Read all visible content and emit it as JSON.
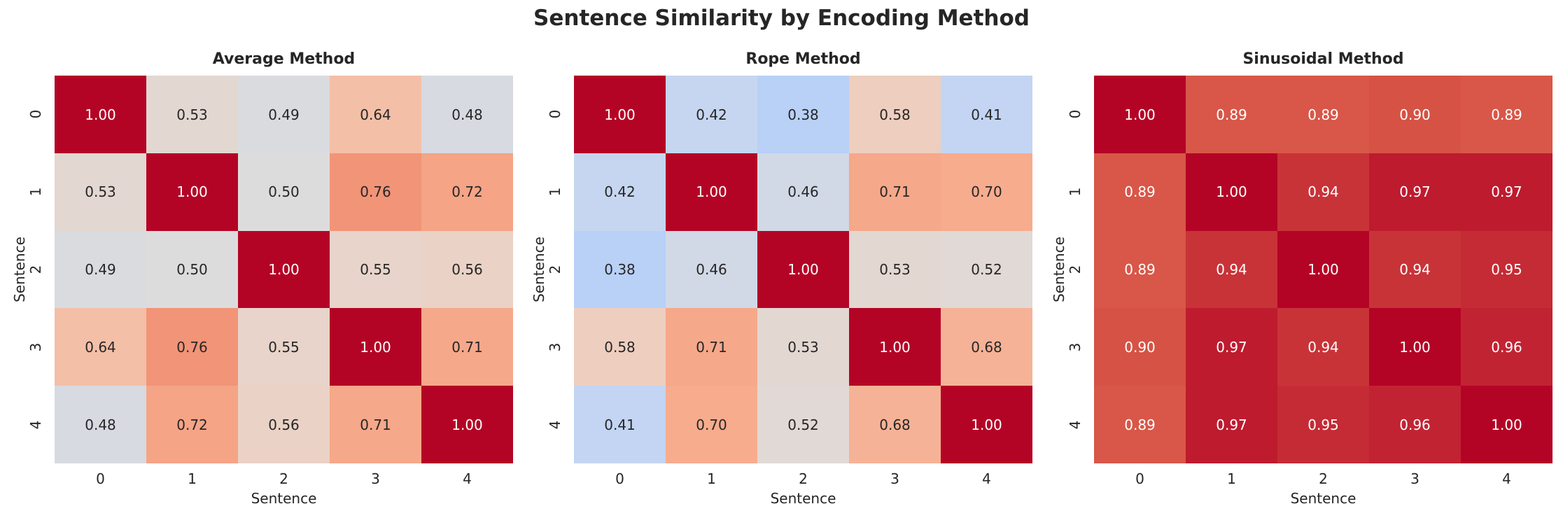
{
  "chart_data": {
    "type": "heatmap",
    "title": "Sentence Similarity by Encoding Method",
    "colormap": "coolwarm",
    "color_range": [
      0,
      1
    ],
    "annotations": true,
    "labels": [
      "0",
      "1",
      "2",
      "3",
      "4"
    ],
    "panels": [
      {
        "title": "Average Method",
        "xlabel": "Sentence",
        "ylabel": "Sentence",
        "values": [
          [
            1.0,
            0.53,
            0.49,
            0.64,
            0.48
          ],
          [
            0.53,
            1.0,
            0.5,
            0.76,
            0.72
          ],
          [
            0.49,
            0.5,
            1.0,
            0.55,
            0.56
          ],
          [
            0.64,
            0.76,
            0.55,
            1.0,
            0.71
          ],
          [
            0.48,
            0.72,
            0.56,
            0.71,
            1.0
          ]
        ]
      },
      {
        "title": "Rope Method",
        "xlabel": "Sentence",
        "ylabel": "Sentence",
        "values": [
          [
            1.0,
            0.42,
            0.38,
            0.58,
            0.41
          ],
          [
            0.42,
            1.0,
            0.46,
            0.71,
            0.7
          ],
          [
            0.38,
            0.46,
            1.0,
            0.53,
            0.52
          ],
          [
            0.58,
            0.71,
            0.53,
            1.0,
            0.68
          ],
          [
            0.41,
            0.7,
            0.52,
            0.68,
            1.0
          ]
        ]
      },
      {
        "title": "Sinusoidal Method",
        "xlabel": "Sentence",
        "ylabel": "Sentence",
        "values": [
          [
            1.0,
            0.89,
            0.89,
            0.9,
            0.89
          ],
          [
            0.89,
            1.0,
            0.94,
            0.97,
            0.97
          ],
          [
            0.89,
            0.94,
            1.0,
            0.94,
            0.95
          ],
          [
            0.9,
            0.97,
            0.94,
            1.0,
            0.96
          ],
          [
            0.89,
            0.97,
            0.95,
            0.96,
            1.0
          ]
        ]
      }
    ]
  }
}
